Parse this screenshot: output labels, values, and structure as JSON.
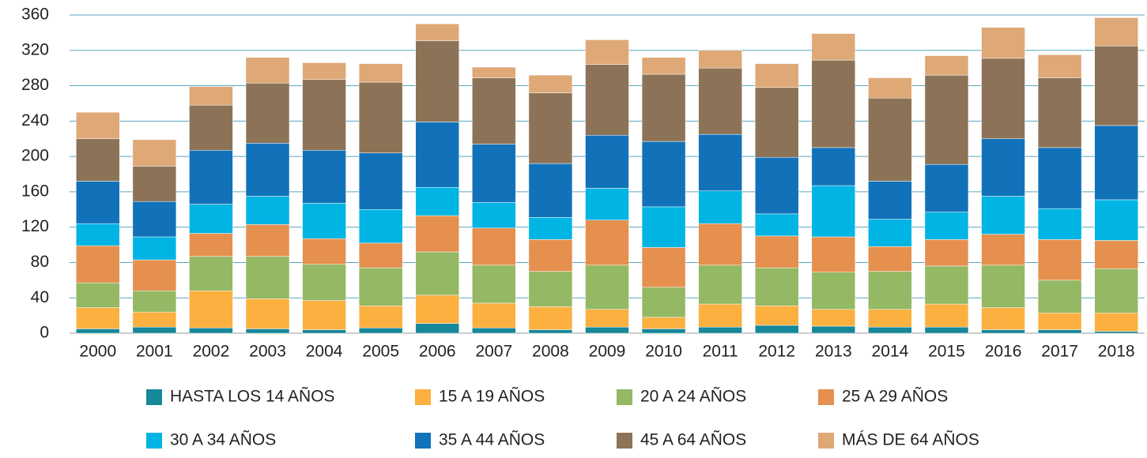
{
  "chart_data": {
    "type": "stacked_bar",
    "categories": [
      "2000",
      "2001",
      "2002",
      "2003",
      "2004",
      "2005",
      "2006",
      "2007",
      "2008",
      "2009",
      "2010",
      "2011",
      "2012",
      "2013",
      "2014",
      "2015",
      "2016",
      "2017",
      "2018"
    ],
    "series": [
      {
        "name": "HASTA LOS 14 AÑOS",
        "color": "#17879a",
        "values": [
          5,
          7,
          6,
          5,
          4,
          6,
          11,
          6,
          4,
          7,
          5,
          7,
          9,
          8,
          7,
          7,
          4,
          4,
          2
        ]
      },
      {
        "name": "15 A 19 AÑOS",
        "color": "#fbb040",
        "values": [
          24,
          17,
          42,
          34,
          33,
          25,
          32,
          28,
          26,
          20,
          13,
          26,
          22,
          19,
          20,
          26,
          25,
          19,
          21
        ]
      },
      {
        "name": "20 A 24 AÑOS",
        "color": "#94b864",
        "values": [
          28,
          24,
          39,
          48,
          41,
          43,
          49,
          43,
          40,
          50,
          34,
          44,
          43,
          42,
          43,
          43,
          48,
          37,
          50
        ]
      },
      {
        "name": "25 A 29 AÑOS",
        "color": "#e5904e",
        "values": [
          42,
          35,
          26,
          36,
          29,
          28,
          41,
          42,
          36,
          51,
          45,
          47,
          36,
          40,
          28,
          30,
          35,
          46,
          32
        ]
      },
      {
        "name": "30 A 34 AÑOS",
        "color": "#00b4e4",
        "values": [
          25,
          26,
          33,
          32,
          40,
          38,
          32,
          29,
          25,
          36,
          46,
          37,
          25,
          58,
          31,
          31,
          43,
          35,
          46
        ]
      },
      {
        "name": "35 A 44 AÑOS",
        "color": "#1272b9",
        "values": [
          48,
          40,
          61,
          60,
          60,
          64,
          74,
          66,
          61,
          60,
          74,
          64,
          64,
          43,
          43,
          54,
          65,
          69,
          84
        ]
      },
      {
        "name": "45 A 64 AÑOS",
        "color": "#8c7357",
        "values": [
          48,
          40,
          51,
          68,
          80,
          80,
          92,
          75,
          80,
          80,
          76,
          75,
          79,
          99,
          94,
          101,
          91,
          79,
          90
        ]
      },
      {
        "name": "MÁS DE 64 AÑOS",
        "color": "#dfa877",
        "values": [
          30,
          30,
          21,
          29,
          19,
          21,
          19,
          12,
          20,
          28,
          19,
          20,
          27,
          30,
          23,
          22,
          35,
          26,
          32
        ]
      }
    ],
    "ylim": [
      0,
      360
    ],
    "yticks": [
      0,
      40,
      80,
      120,
      160,
      200,
      240,
      280,
      320,
      360
    ],
    "grid": true
  }
}
